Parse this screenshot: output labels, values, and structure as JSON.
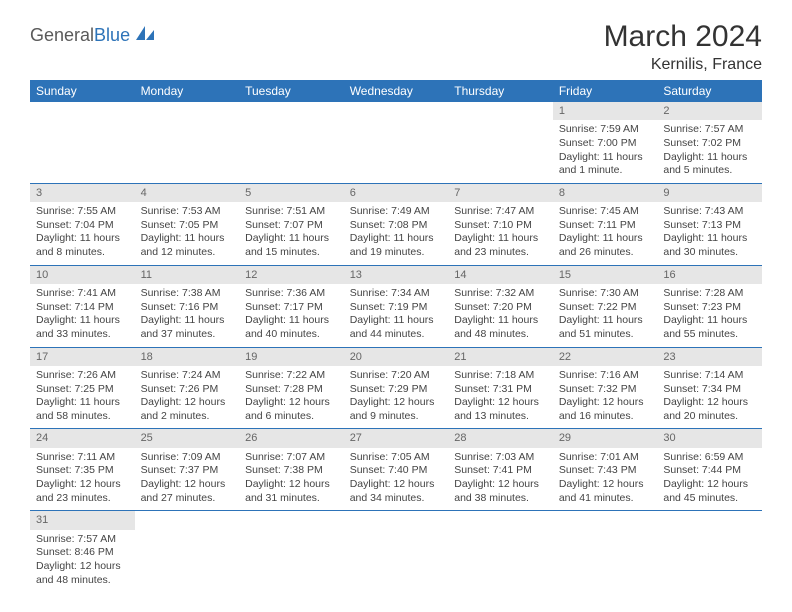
{
  "logo": {
    "part1": "General",
    "part2": "Blue"
  },
  "title": "March 2024",
  "location": "Kernilis, France",
  "colors": {
    "header_bg": "#2d73b8",
    "header_text": "#ffffff",
    "daynum_bg": "#e6e6e6",
    "daynum_text": "#666666",
    "body_text": "#444444",
    "rule": "#2d73b8"
  },
  "weekdays": [
    "Sunday",
    "Monday",
    "Tuesday",
    "Wednesday",
    "Thursday",
    "Friday",
    "Saturday"
  ],
  "cells": [
    {
      "n": "",
      "sr": "",
      "ss": "",
      "dl": ""
    },
    {
      "n": "",
      "sr": "",
      "ss": "",
      "dl": ""
    },
    {
      "n": "",
      "sr": "",
      "ss": "",
      "dl": ""
    },
    {
      "n": "",
      "sr": "",
      "ss": "",
      "dl": ""
    },
    {
      "n": "",
      "sr": "",
      "ss": "",
      "dl": ""
    },
    {
      "n": "1",
      "sr": "Sunrise: 7:59 AM",
      "ss": "Sunset: 7:00 PM",
      "dl": "Daylight: 11 hours and 1 minute."
    },
    {
      "n": "2",
      "sr": "Sunrise: 7:57 AM",
      "ss": "Sunset: 7:02 PM",
      "dl": "Daylight: 11 hours and 5 minutes."
    },
    {
      "n": "3",
      "sr": "Sunrise: 7:55 AM",
      "ss": "Sunset: 7:04 PM",
      "dl": "Daylight: 11 hours and 8 minutes."
    },
    {
      "n": "4",
      "sr": "Sunrise: 7:53 AM",
      "ss": "Sunset: 7:05 PM",
      "dl": "Daylight: 11 hours and 12 minutes."
    },
    {
      "n": "5",
      "sr": "Sunrise: 7:51 AM",
      "ss": "Sunset: 7:07 PM",
      "dl": "Daylight: 11 hours and 15 minutes."
    },
    {
      "n": "6",
      "sr": "Sunrise: 7:49 AM",
      "ss": "Sunset: 7:08 PM",
      "dl": "Daylight: 11 hours and 19 minutes."
    },
    {
      "n": "7",
      "sr": "Sunrise: 7:47 AM",
      "ss": "Sunset: 7:10 PM",
      "dl": "Daylight: 11 hours and 23 minutes."
    },
    {
      "n": "8",
      "sr": "Sunrise: 7:45 AM",
      "ss": "Sunset: 7:11 PM",
      "dl": "Daylight: 11 hours and 26 minutes."
    },
    {
      "n": "9",
      "sr": "Sunrise: 7:43 AM",
      "ss": "Sunset: 7:13 PM",
      "dl": "Daylight: 11 hours and 30 minutes."
    },
    {
      "n": "10",
      "sr": "Sunrise: 7:41 AM",
      "ss": "Sunset: 7:14 PM",
      "dl": "Daylight: 11 hours and 33 minutes."
    },
    {
      "n": "11",
      "sr": "Sunrise: 7:38 AM",
      "ss": "Sunset: 7:16 PM",
      "dl": "Daylight: 11 hours and 37 minutes."
    },
    {
      "n": "12",
      "sr": "Sunrise: 7:36 AM",
      "ss": "Sunset: 7:17 PM",
      "dl": "Daylight: 11 hours and 40 minutes."
    },
    {
      "n": "13",
      "sr": "Sunrise: 7:34 AM",
      "ss": "Sunset: 7:19 PM",
      "dl": "Daylight: 11 hours and 44 minutes."
    },
    {
      "n": "14",
      "sr": "Sunrise: 7:32 AM",
      "ss": "Sunset: 7:20 PM",
      "dl": "Daylight: 11 hours and 48 minutes."
    },
    {
      "n": "15",
      "sr": "Sunrise: 7:30 AM",
      "ss": "Sunset: 7:22 PM",
      "dl": "Daylight: 11 hours and 51 minutes."
    },
    {
      "n": "16",
      "sr": "Sunrise: 7:28 AM",
      "ss": "Sunset: 7:23 PM",
      "dl": "Daylight: 11 hours and 55 minutes."
    },
    {
      "n": "17",
      "sr": "Sunrise: 7:26 AM",
      "ss": "Sunset: 7:25 PM",
      "dl": "Daylight: 11 hours and 58 minutes."
    },
    {
      "n": "18",
      "sr": "Sunrise: 7:24 AM",
      "ss": "Sunset: 7:26 PM",
      "dl": "Daylight: 12 hours and 2 minutes."
    },
    {
      "n": "19",
      "sr": "Sunrise: 7:22 AM",
      "ss": "Sunset: 7:28 PM",
      "dl": "Daylight: 12 hours and 6 minutes."
    },
    {
      "n": "20",
      "sr": "Sunrise: 7:20 AM",
      "ss": "Sunset: 7:29 PM",
      "dl": "Daylight: 12 hours and 9 minutes."
    },
    {
      "n": "21",
      "sr": "Sunrise: 7:18 AM",
      "ss": "Sunset: 7:31 PM",
      "dl": "Daylight: 12 hours and 13 minutes."
    },
    {
      "n": "22",
      "sr": "Sunrise: 7:16 AM",
      "ss": "Sunset: 7:32 PM",
      "dl": "Daylight: 12 hours and 16 minutes."
    },
    {
      "n": "23",
      "sr": "Sunrise: 7:14 AM",
      "ss": "Sunset: 7:34 PM",
      "dl": "Daylight: 12 hours and 20 minutes."
    },
    {
      "n": "24",
      "sr": "Sunrise: 7:11 AM",
      "ss": "Sunset: 7:35 PM",
      "dl": "Daylight: 12 hours and 23 minutes."
    },
    {
      "n": "25",
      "sr": "Sunrise: 7:09 AM",
      "ss": "Sunset: 7:37 PM",
      "dl": "Daylight: 12 hours and 27 minutes."
    },
    {
      "n": "26",
      "sr": "Sunrise: 7:07 AM",
      "ss": "Sunset: 7:38 PM",
      "dl": "Daylight: 12 hours and 31 minutes."
    },
    {
      "n": "27",
      "sr": "Sunrise: 7:05 AM",
      "ss": "Sunset: 7:40 PM",
      "dl": "Daylight: 12 hours and 34 minutes."
    },
    {
      "n": "28",
      "sr": "Sunrise: 7:03 AM",
      "ss": "Sunset: 7:41 PM",
      "dl": "Daylight: 12 hours and 38 minutes."
    },
    {
      "n": "29",
      "sr": "Sunrise: 7:01 AM",
      "ss": "Sunset: 7:43 PM",
      "dl": "Daylight: 12 hours and 41 minutes."
    },
    {
      "n": "30",
      "sr": "Sunrise: 6:59 AM",
      "ss": "Sunset: 7:44 PM",
      "dl": "Daylight: 12 hours and 45 minutes."
    },
    {
      "n": "31",
      "sr": "Sunrise: 7:57 AM",
      "ss": "Sunset: 8:46 PM",
      "dl": "Daylight: 12 hours and 48 minutes."
    },
    {
      "n": "",
      "sr": "",
      "ss": "",
      "dl": ""
    },
    {
      "n": "",
      "sr": "",
      "ss": "",
      "dl": ""
    },
    {
      "n": "",
      "sr": "",
      "ss": "",
      "dl": ""
    },
    {
      "n": "",
      "sr": "",
      "ss": "",
      "dl": ""
    },
    {
      "n": "",
      "sr": "",
      "ss": "",
      "dl": ""
    },
    {
      "n": "",
      "sr": "",
      "ss": "",
      "dl": ""
    }
  ]
}
